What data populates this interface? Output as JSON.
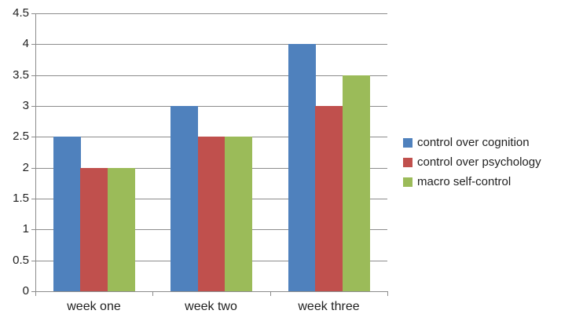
{
  "chart_data": {
    "type": "bar",
    "title": "",
    "categories": [
      "week one",
      "week two",
      "week three"
    ],
    "series": [
      {
        "name": "control over cognition",
        "color": "#4F81BD",
        "values": [
          2.5,
          3.0,
          4.0
        ]
      },
      {
        "name": "control over psychology",
        "color": "#C0504D",
        "values": [
          2.0,
          2.5,
          3.0
        ]
      },
      {
        "name": "macro self-control",
        "color": "#9BBB59",
        "values": [
          2.0,
          2.5,
          3.5
        ]
      }
    ],
    "ylim": [
      0,
      4.5
    ],
    "ytick_step": 0.5,
    "ytick_labels": [
      "0",
      "0.5",
      "1",
      "1.5",
      "2",
      "2.5",
      "3",
      "3.5",
      "4",
      "4.5"
    ],
    "grid": true,
    "legend_position": "right"
  },
  "colors": {
    "background": "#FFFFFF",
    "gridline": "#8C8C8C",
    "axis": "#8C8C8C",
    "text": "#1F1F1F"
  }
}
